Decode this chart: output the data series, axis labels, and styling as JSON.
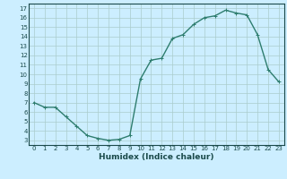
{
  "x": [
    0,
    1,
    2,
    3,
    4,
    5,
    6,
    7,
    8,
    9,
    10,
    11,
    12,
    13,
    14,
    15,
    16,
    17,
    18,
    19,
    20,
    21,
    22,
    23
  ],
  "y": [
    7,
    6.5,
    6.5,
    5.5,
    4.5,
    3.5,
    3.2,
    3.0,
    3.1,
    3.5,
    9.5,
    11.5,
    11.7,
    13.8,
    14.2,
    15.3,
    16.0,
    16.2,
    16.8,
    16.5,
    16.3,
    14.2,
    10.5,
    9.2
  ],
  "line_color": "#2e7d6e",
  "marker": "+",
  "marker_size": 3,
  "bg_color": "#cceeff",
  "grid_color": "#aacccc",
  "xlabel": "Humidex (Indice chaleur)",
  "xlim": [
    -0.5,
    23.5
  ],
  "ylim": [
    2.5,
    17.5
  ],
  "yticks": [
    3,
    4,
    5,
    6,
    7,
    8,
    9,
    10,
    11,
    12,
    13,
    14,
    15,
    16,
    17
  ],
  "xticks": [
    0,
    1,
    2,
    3,
    4,
    5,
    6,
    7,
    8,
    9,
    10,
    11,
    12,
    13,
    14,
    15,
    16,
    17,
    18,
    19,
    20,
    21,
    22,
    23
  ],
  "tick_fontsize": 5,
  "xlabel_fontsize": 6.5,
  "axis_label_color": "#1a4a4a",
  "line_width": 1.0,
  "spine_color": "#1a4a4a"
}
